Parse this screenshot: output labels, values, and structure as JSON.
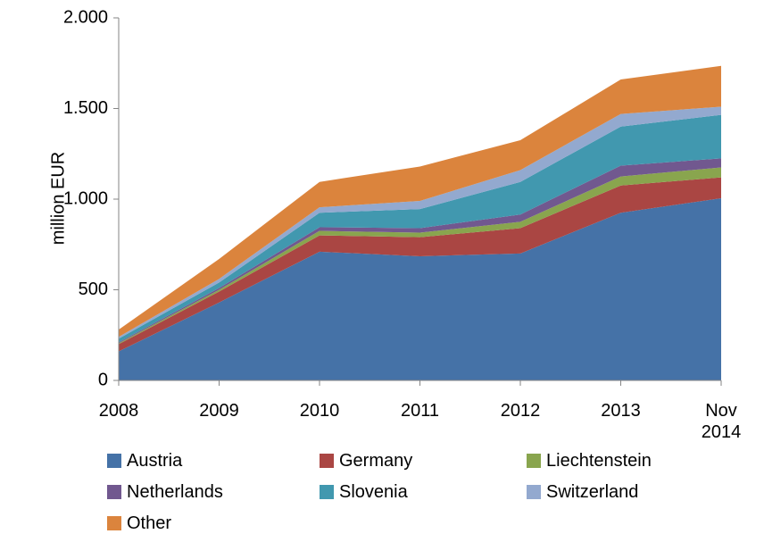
{
  "chart_data": {
    "type": "area",
    "stacked": true,
    "ylabel": "million EUR",
    "categories": [
      "2008",
      "2009",
      "2010",
      "2011",
      "2012",
      "2013",
      "Nov 2014"
    ],
    "series": [
      {
        "name": "Austria",
        "color": "#4572a7",
        "values": [
          160,
          430,
          710,
          685,
          700,
          925,
          1005
        ]
      },
      {
        "name": "Germany",
        "color": "#aa4643",
        "values": [
          40,
          60,
          90,
          105,
          140,
          150,
          115
        ]
      },
      {
        "name": "Liechtenstein",
        "color": "#89a54e",
        "values": [
          5,
          10,
          25,
          25,
          35,
          50,
          55
        ]
      },
      {
        "name": "Netherlands",
        "color": "#71588f",
        "values": [
          5,
          10,
          20,
          25,
          40,
          60,
          50
        ]
      },
      {
        "name": "Slovenia",
        "color": "#4198af",
        "values": [
          20,
          30,
          80,
          105,
          180,
          215,
          240
        ]
      },
      {
        "name": "Switzerland",
        "color": "#93a9cf",
        "values": [
          10,
          20,
          30,
          45,
          65,
          70,
          45
        ]
      },
      {
        "name": "Other",
        "color": "#db843d",
        "values": [
          40,
          110,
          140,
          190,
          165,
          190,
          225
        ]
      }
    ],
    "ylim": [
      0,
      2000
    ],
    "yticks": [
      0,
      500,
      {
        "value": 1000,
        "label": "1.000"
      },
      {
        "value": 1500,
        "label": "1.500"
      },
      {
        "value": 2000,
        "label": "2.000"
      }
    ],
    "grid": false,
    "legend": "bottom"
  }
}
